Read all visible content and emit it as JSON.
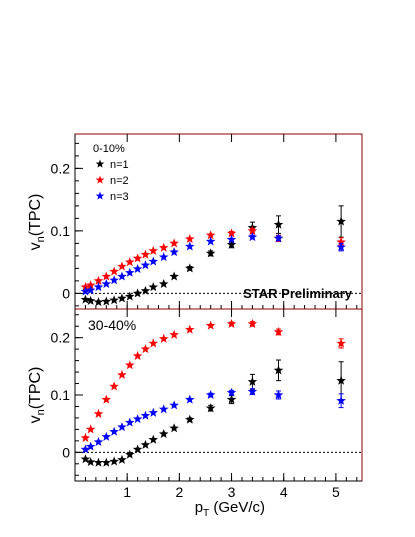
{
  "figure": {
    "x_axis_label_main": "p",
    "x_axis_label_sub": "T",
    "x_axis_label_unit": " (GeV/c)",
    "star_preliminary": "STAR Preliminary",
    "colors": {
      "n1": "#000000",
      "n2": "#ff0000",
      "n3": "#0000ff",
      "frame": "#8b0000"
    }
  },
  "chart_data": [
    {
      "type": "scatter",
      "panel_label": "0-10%",
      "ylabel_main": "v",
      "ylabel_sub": "n",
      "ylabel_tail": "(TPC)",
      "xlim": [
        0,
        5.5
      ],
      "ylim": [
        -0.025,
        0.255
      ],
      "x_ticks": [
        1,
        2,
        3,
        4,
        5
      ],
      "y_ticks": [
        0,
        0.1,
        0.2
      ],
      "y_tick_labels": [
        "0",
        "0.1",
        "0.2"
      ],
      "legend_position": "top-left",
      "reference_line_y": 0,
      "series": [
        {
          "name": "n=1",
          "color": "#000000",
          "x": [
            0.2,
            0.3,
            0.45,
            0.6,
            0.75,
            0.9,
            1.05,
            1.2,
            1.35,
            1.5,
            1.7,
            1.9,
            2.2,
            2.6,
            3.0,
            3.4,
            3.9,
            5.1
          ],
          "y": [
            -0.01,
            -0.012,
            -0.014,
            -0.013,
            -0.011,
            -0.008,
            -0.005,
            0.0,
            0.004,
            0.01,
            0.015,
            0.027,
            0.04,
            0.064,
            0.078,
            0.105,
            0.11,
            0.115
          ],
          "err": [
            0.001,
            0.001,
            0.001,
            0.001,
            0.001,
            0.001,
            0.001,
            0.001,
            0.001,
            0.002,
            0.002,
            0.002,
            0.003,
            0.004,
            0.005,
            0.009,
            0.014,
            0.025
          ]
        },
        {
          "name": "n=2",
          "color": "#ff0000",
          "x": [
            0.2,
            0.3,
            0.45,
            0.6,
            0.75,
            0.9,
            1.05,
            1.2,
            1.35,
            1.5,
            1.7,
            1.9,
            2.2,
            2.6,
            3.0,
            3.4,
            3.9,
            5.1
          ],
          "y": [
            0.01,
            0.013,
            0.02,
            0.027,
            0.035,
            0.043,
            0.05,
            0.056,
            0.062,
            0.068,
            0.073,
            0.08,
            0.087,
            0.093,
            0.096,
            0.1,
            0.088,
            0.082
          ],
          "err": [
            0.001,
            0.001,
            0.001,
            0.001,
            0.001,
            0.001,
            0.001,
            0.001,
            0.001,
            0.001,
            0.001,
            0.001,
            0.002,
            0.002,
            0.003,
            0.004,
            0.005,
            0.007
          ]
        },
        {
          "name": "n=3",
          "color": "#0000ff",
          "x": [
            0.2,
            0.3,
            0.45,
            0.6,
            0.75,
            0.9,
            1.05,
            1.2,
            1.35,
            1.5,
            1.7,
            1.9,
            2.2,
            2.6,
            3.0,
            3.4,
            3.9,
            5.1
          ],
          "y": [
            0.003,
            0.005,
            0.01,
            0.015,
            0.021,
            0.027,
            0.033,
            0.039,
            0.045,
            0.051,
            0.058,
            0.066,
            0.075,
            0.083,
            0.086,
            0.09,
            0.088,
            0.074
          ],
          "err": [
            0.001,
            0.001,
            0.001,
            0.001,
            0.001,
            0.001,
            0.001,
            0.001,
            0.001,
            0.001,
            0.001,
            0.001,
            0.002,
            0.002,
            0.002,
            0.003,
            0.004,
            0.006
          ]
        }
      ]
    },
    {
      "type": "scatter",
      "panel_label": "30-40%",
      "ylabel_main": "v",
      "ylabel_sub": "n",
      "ylabel_tail": "(TPC)",
      "xlim": [
        0,
        5.5
      ],
      "ylim": [
        -0.05,
        0.25
      ],
      "x_ticks": [
        1,
        2,
        3,
        4,
        5
      ],
      "x_tick_labels": [
        "1",
        "2",
        "3",
        "4",
        "5"
      ],
      "y_ticks": [
        0,
        0.1,
        0.2
      ],
      "y_tick_labels": [
        "0",
        "0.1",
        "0.2"
      ],
      "reference_line_y": 0,
      "series": [
        {
          "name": "n=1",
          "color": "#000000",
          "x": [
            0.2,
            0.3,
            0.45,
            0.6,
            0.75,
            0.9,
            1.05,
            1.2,
            1.35,
            1.5,
            1.7,
            1.9,
            2.2,
            2.6,
            3.0,
            3.4,
            3.9,
            5.1
          ],
          "y": [
            -0.012,
            -0.017,
            -0.018,
            -0.018,
            -0.016,
            -0.013,
            -0.004,
            0.005,
            0.013,
            0.022,
            0.032,
            0.042,
            0.057,
            0.077,
            0.092,
            0.123,
            0.143,
            0.125
          ],
          "err": [
            0.001,
            0.001,
            0.001,
            0.001,
            0.001,
            0.001,
            0.001,
            0.001,
            0.001,
            0.002,
            0.002,
            0.002,
            0.003,
            0.005,
            0.007,
            0.013,
            0.018,
            0.033
          ]
        },
        {
          "name": "n=2",
          "color": "#ff0000",
          "x": [
            0.2,
            0.3,
            0.45,
            0.6,
            0.75,
            0.9,
            1.05,
            1.2,
            1.35,
            1.5,
            1.7,
            1.9,
            2.2,
            2.6,
            3.0,
            3.4,
            3.9,
            5.1
          ],
          "y": [
            0.025,
            0.04,
            0.067,
            0.092,
            0.115,
            0.135,
            0.152,
            0.168,
            0.18,
            0.19,
            0.198,
            0.205,
            0.214,
            0.221,
            0.224,
            0.224,
            0.21,
            0.19
          ],
          "err": [
            0.001,
            0.001,
            0.001,
            0.001,
            0.001,
            0.001,
            0.001,
            0.001,
            0.001,
            0.001,
            0.001,
            0.001,
            0.002,
            0.002,
            0.003,
            0.004,
            0.005,
            0.008
          ]
        },
        {
          "name": "n=3",
          "color": "#0000ff",
          "x": [
            0.2,
            0.3,
            0.45,
            0.6,
            0.75,
            0.9,
            1.05,
            1.2,
            1.35,
            1.5,
            1.7,
            1.9,
            2.2,
            2.6,
            3.0,
            3.4,
            3.9,
            5.1
          ],
          "y": [
            0.005,
            0.01,
            0.018,
            0.027,
            0.036,
            0.044,
            0.052,
            0.058,
            0.064,
            0.069,
            0.075,
            0.082,
            0.092,
            0.1,
            0.104,
            0.106,
            0.1,
            0.09
          ],
          "err": [
            0.001,
            0.001,
            0.001,
            0.001,
            0.001,
            0.001,
            0.001,
            0.001,
            0.001,
            0.001,
            0.001,
            0.001,
            0.002,
            0.003,
            0.004,
            0.005,
            0.007,
            0.012
          ]
        }
      ]
    }
  ]
}
